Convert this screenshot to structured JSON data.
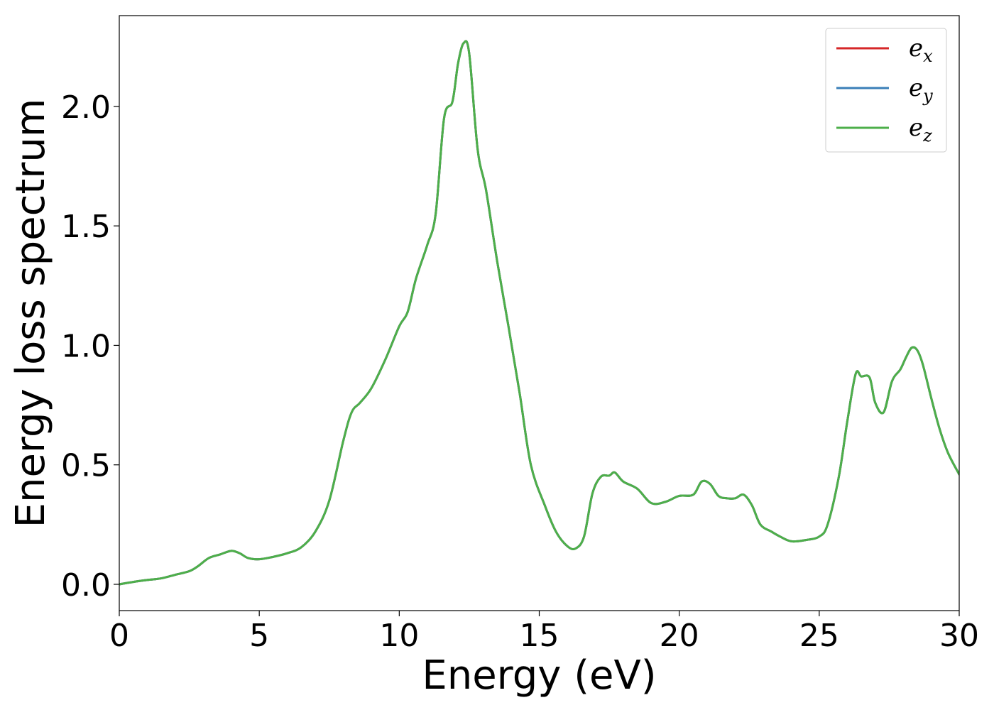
{
  "chart_data": {
    "type": "line",
    "title": "",
    "xlabel": "Energy (eV)",
    "ylabel": "Energy loss spectrum",
    "xlim": [
      0,
      30
    ],
    "ylim": [
      -0.11,
      2.38
    ],
    "xticks": [
      0,
      5,
      10,
      15,
      20,
      25,
      30
    ],
    "yticks": [
      0.0,
      0.5,
      1.0,
      1.5,
      2.0
    ],
    "xtick_labels": [
      "0",
      "5",
      "10",
      "15",
      "20",
      "25",
      "30"
    ],
    "ytick_labels": [
      "0.0",
      "0.5",
      "1.0",
      "1.5",
      "2.0"
    ],
    "grid": false,
    "legend_position": "top-right",
    "series": [
      {
        "name": "e_x",
        "label_base": "e",
        "label_sub": "x",
        "color": "#d62728"
      },
      {
        "name": "e_y",
        "label_base": "e",
        "label_sub": "y",
        "color": "#3a7fb8"
      },
      {
        "name": "e_z",
        "label_base": "e",
        "label_sub": "z",
        "color": "#4daf4a"
      }
    ],
    "x": [
      0,
      0.5,
      1,
      1.5,
      2,
      2.5,
      2.8,
      3.2,
      3.6,
      4,
      4.3,
      4.6,
      5,
      5.5,
      6,
      6.5,
      7,
      7.5,
      8,
      8.3,
      8.6,
      9,
      9.5,
      10,
      10.3,
      10.6,
      11,
      11.3,
      11.6,
      11.9,
      12.1,
      12.3,
      12.5,
      12.8,
      13.1,
      13.5,
      13.9,
      14.3,
      14.7,
      15.2,
      15.6,
      16,
      16.3,
      16.6,
      16.9,
      17.2,
      17.5,
      17.7,
      18,
      18.5,
      19,
      19.5,
      20,
      20.5,
      20.8,
      21.1,
      21.4,
      21.7,
      22,
      22.3,
      22.6,
      22.9,
      23.3,
      23.6,
      24,
      24.5,
      25,
      25.3,
      25.7,
      26,
      26.3,
      26.5,
      26.8,
      27,
      27.3,
      27.6,
      27.9,
      28.1,
      28.3,
      28.5,
      28.7,
      29,
      29.3,
      29.6,
      30
    ],
    "y": [
      0.0,
      0.01,
      0.018,
      0.025,
      0.04,
      0.055,
      0.075,
      0.11,
      0.125,
      0.14,
      0.13,
      0.11,
      0.105,
      0.115,
      0.13,
      0.155,
      0.22,
      0.35,
      0.6,
      0.72,
      0.76,
      0.82,
      0.94,
      1.08,
      1.14,
      1.28,
      1.42,
      1.55,
      1.95,
      2.02,
      2.18,
      2.265,
      2.22,
      1.82,
      1.65,
      1.35,
      1.08,
      0.8,
      0.5,
      0.33,
      0.22,
      0.16,
      0.15,
      0.2,
      0.38,
      0.45,
      0.455,
      0.468,
      0.43,
      0.4,
      0.34,
      0.345,
      0.37,
      0.375,
      0.43,
      0.42,
      0.37,
      0.36,
      0.36,
      0.375,
      0.33,
      0.25,
      0.22,
      0.2,
      0.18,
      0.185,
      0.2,
      0.25,
      0.45,
      0.68,
      0.88,
      0.87,
      0.865,
      0.76,
      0.72,
      0.85,
      0.9,
      0.95,
      0.99,
      0.98,
      0.92,
      0.78,
      0.65,
      0.55,
      0.46
    ]
  }
}
